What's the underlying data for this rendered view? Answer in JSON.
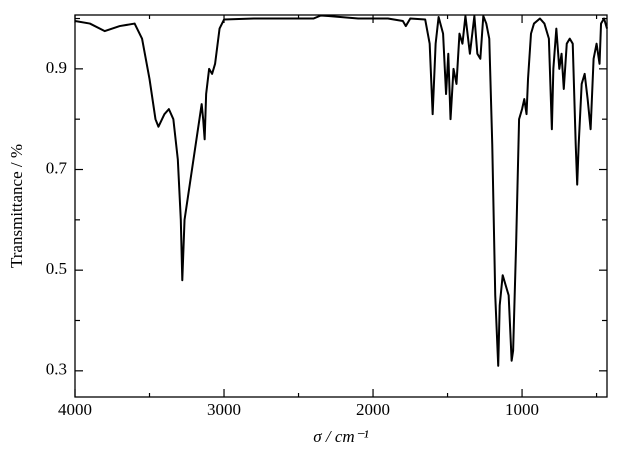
{
  "chart_data": {
    "type": "line",
    "xlabel": "σ / cm⁻¹",
    "ylabel": "Transmittance / %",
    "xlim": [
      4000,
      430
    ],
    "ylim": [
      0.248,
      1.007
    ],
    "xticks": [
      4000,
      3000,
      2000,
      1000
    ],
    "xminor_ticks": [
      3500,
      2500,
      1500,
      500
    ],
    "yticks": [
      0.3,
      0.5,
      0.7,
      0.9
    ],
    "yminor_ticks": [
      0.4,
      0.6,
      0.8,
      1.0
    ],
    "series": [
      {
        "color": "#000000",
        "x": [
          4000,
          3900,
          3800,
          3700,
          3600,
          3550,
          3500,
          3460,
          3440,
          3400,
          3370,
          3340,
          3310,
          3290,
          3280,
          3265,
          3230,
          3200,
          3170,
          3150,
          3140,
          3130,
          3120,
          3100,
          3080,
          3060,
          3030,
          3000,
          2800,
          2500,
          2400,
          2350,
          2300,
          2100,
          1900,
          1800,
          1780,
          1750,
          1650,
          1620,
          1600,
          1580,
          1560,
          1530,
          1510,
          1495,
          1480,
          1460,
          1440,
          1420,
          1400,
          1380,
          1350,
          1320,
          1300,
          1280,
          1260,
          1240,
          1220,
          1200,
          1180,
          1160,
          1150,
          1130,
          1110,
          1090,
          1070,
          1060,
          1040,
          1020,
          1000,
          985,
          970,
          960,
          940,
          920,
          880,
          850,
          820,
          800,
          790,
          770,
          750,
          735,
          720,
          700,
          680,
          660,
          640,
          630,
          620,
          600,
          580,
          560,
          540,
          520,
          500,
          480,
          470,
          450,
          430
        ],
        "values": [
          0.995,
          0.99,
          0.975,
          0.985,
          0.99,
          0.96,
          0.88,
          0.8,
          0.785,
          0.81,
          0.82,
          0.8,
          0.72,
          0.6,
          0.48,
          0.6,
          0.67,
          0.73,
          0.79,
          0.83,
          0.8,
          0.76,
          0.85,
          0.9,
          0.89,
          0.91,
          0.98,
          0.998,
          1.0,
          1.0,
          1.0,
          1.006,
          1.005,
          1.0,
          1.0,
          0.995,
          0.985,
          1.0,
          0.998,
          0.95,
          0.81,
          0.95,
          1.003,
          0.97,
          0.85,
          0.93,
          0.8,
          0.9,
          0.87,
          0.97,
          0.95,
          1.005,
          0.93,
          1.005,
          0.93,
          0.92,
          1.005,
          0.99,
          0.96,
          0.75,
          0.45,
          0.31,
          0.43,
          0.49,
          0.47,
          0.45,
          0.32,
          0.34,
          0.55,
          0.8,
          0.82,
          0.84,
          0.81,
          0.88,
          0.97,
          0.99,
          1.0,
          0.99,
          0.96,
          0.78,
          0.9,
          0.98,
          0.9,
          0.93,
          0.86,
          0.95,
          0.96,
          0.95,
          0.75,
          0.67,
          0.75,
          0.87,
          0.89,
          0.84,
          0.78,
          0.92,
          0.95,
          0.91,
          0.99,
          1.0,
          0.98
        ]
      }
    ]
  }
}
